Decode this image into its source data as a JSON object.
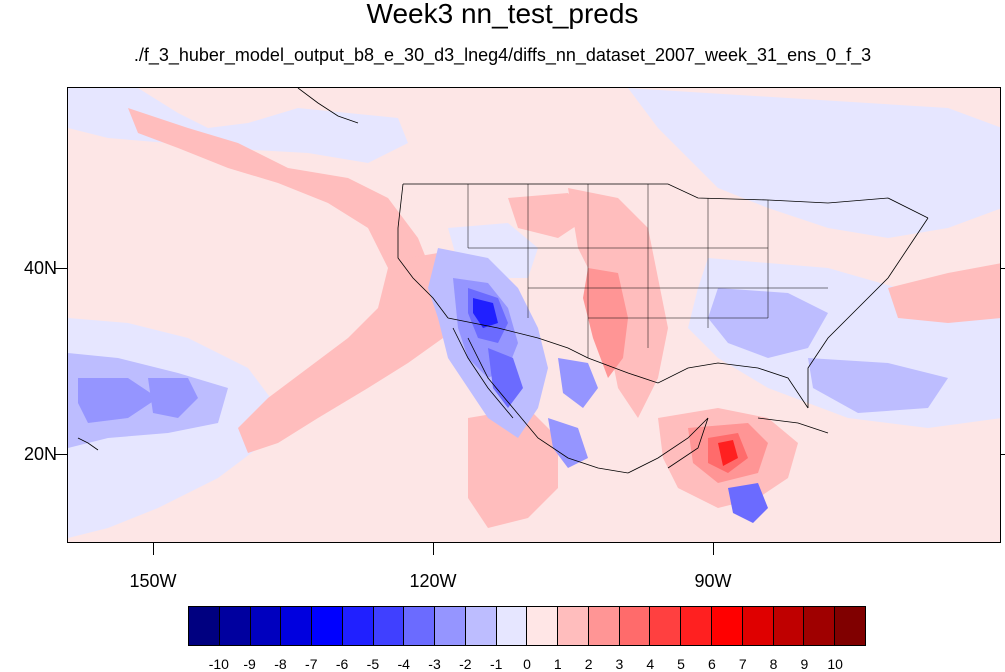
{
  "title": "Week3 nn_test_preds",
  "subtitle": "./f_3_huber_model_output_b8_e_30_d3_lneg4/diffs_nn_dataset_2007_week_31_ens_0_f_3",
  "lat_labels": [
    "40N",
    "20N"
  ],
  "lon_labels": [
    "150W",
    "120W",
    "90W"
  ],
  "colorbar": {
    "labels": [
      "-10",
      "-9",
      "-8",
      "-7",
      "-6",
      "-5",
      "-4",
      "-3",
      "-2",
      "-1",
      "0",
      "1",
      "2",
      "3",
      "4",
      "5",
      "6",
      "7",
      "8",
      "9",
      "10"
    ],
    "colors": [
      "#000080",
      "#00009f",
      "#0000bf",
      "#0000df",
      "#0000ff",
      "#2020ff",
      "#4040ff",
      "#6b6bff",
      "#9595ff",
      "#bdbdff",
      "#e6e6ff",
      "#ffe6e6",
      "#ffbdbd",
      "#ff9595",
      "#ff6b6b",
      "#ff4040",
      "#ff2020",
      "#ff0000",
      "#df0000",
      "#bf0000",
      "#9f0000",
      "#800000"
    ]
  },
  "colors": {
    "background_field": "#fde6e6",
    "neg_light": "#e6e6ff",
    "neg_mid": "#bdbdff",
    "neg_strong": "#6b6bff",
    "neg_deep": "#2020ff",
    "pos_light": "#ffbdbd",
    "pos_mid": "#ff9595",
    "pos_strong": "#ff4040",
    "pos_deep": "#ff0000"
  }
}
